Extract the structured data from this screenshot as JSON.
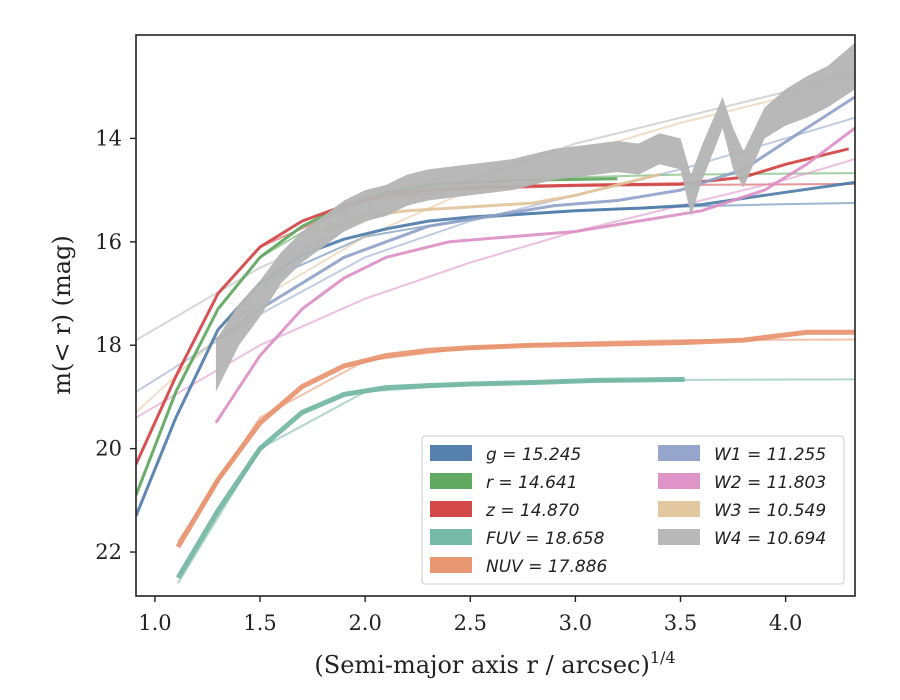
{
  "chart_data": {
    "type": "line",
    "xlabel": "(Semi-major axis r / arcsec)",
    "xlabel_exponent": "1/4",
    "ylabel": "m(< r) (mag)",
    "xlim": [
      0.91,
      4.33
    ],
    "ylim": [
      22.85,
      12.0
    ],
    "y_inverted": true,
    "grid": false,
    "legend_placement": "lower-right",
    "x_ticks": [
      "1.0",
      "1.5",
      "2.0",
      "2.5",
      "3.0",
      "3.5",
      "4.0"
    ],
    "y_ticks": [
      "14",
      "16",
      "18",
      "20",
      "22"
    ],
    "series": [
      {
        "name": "g",
        "legend": "g = 15.245",
        "color": "#4c7aa8",
        "x": [
          0.91,
          1.1,
          1.3,
          1.5,
          1.7,
          1.9,
          2.1,
          2.3,
          2.5,
          2.8,
          3.0,
          3.3,
          3.6,
          3.9,
          4.33
        ],
        "y": [
          21.3,
          19.4,
          17.7,
          16.8,
          16.25,
          15.95,
          15.75,
          15.6,
          15.52,
          15.45,
          15.4,
          15.35,
          15.28,
          15.1,
          14.85
        ],
        "fit_x": [
          1.5,
          2.0,
          2.5,
          3.0,
          3.5,
          4.0,
          4.33
        ],
        "fit_y": [
          16.8,
          15.9,
          15.55,
          15.4,
          15.32,
          15.27,
          15.25
        ]
      },
      {
        "name": "r",
        "legend": "r = 14.641",
        "color": "#5aa55a",
        "x": [
          0.91,
          1.1,
          1.3,
          1.5,
          1.7,
          1.9,
          2.1,
          2.3,
          2.5,
          2.7,
          2.9,
          3.2
        ],
        "y": [
          20.9,
          18.9,
          17.3,
          16.3,
          15.7,
          15.3,
          15.05,
          14.9,
          14.85,
          14.82,
          14.8,
          14.78
        ],
        "fit_x": [
          1.5,
          2.0,
          2.5,
          3.0,
          3.5,
          4.0,
          4.33
        ],
        "fit_y": [
          16.3,
          15.1,
          14.85,
          14.75,
          14.7,
          14.68,
          14.67
        ]
      },
      {
        "name": "z",
        "legend": "z = 14.870",
        "color": "#d24040",
        "x": [
          0.91,
          1.1,
          1.3,
          1.5,
          1.7,
          1.9,
          2.1,
          2.3,
          2.5,
          2.8,
          3.1,
          3.5,
          3.8,
          4.0,
          4.3
        ],
        "y": [
          20.3,
          18.6,
          17.0,
          16.1,
          15.6,
          15.3,
          15.1,
          15.0,
          14.95,
          14.92,
          14.9,
          14.88,
          14.75,
          14.5,
          14.2
        ],
        "fit_x": [
          1.5,
          2.0,
          2.5,
          3.0,
          3.5,
          4.0,
          4.33
        ],
        "fit_y": [
          16.1,
          15.2,
          14.98,
          14.92,
          14.9,
          14.89,
          14.88
        ]
      },
      {
        "name": "FUV",
        "legend": "FUV = 18.658",
        "color": "#6fb5a0",
        "x": [
          1.11,
          1.3,
          1.5,
          1.7,
          1.9,
          2.1,
          2.3,
          2.5,
          2.8,
          3.1,
          3.52
        ],
        "y": [
          22.5,
          21.2,
          20.0,
          19.3,
          18.95,
          18.82,
          18.78,
          18.75,
          18.72,
          18.68,
          18.66
        ],
        "fit_x": [
          1.11,
          1.5,
          2.0,
          2.5,
          3.0,
          3.5,
          4.33
        ],
        "fit_y": [
          22.6,
          20.0,
          18.9,
          18.75,
          18.7,
          18.67,
          18.66
        ]
      },
      {
        "name": "NUV",
        "legend": "NUV = 17.886",
        "color": "#e8906a",
        "x": [
          1.11,
          1.3,
          1.5,
          1.7,
          1.9,
          2.1,
          2.3,
          2.5,
          2.8,
          3.1,
          3.5,
          3.8,
          4.1,
          4.33
        ],
        "y": [
          21.9,
          20.6,
          19.5,
          18.8,
          18.4,
          18.2,
          18.1,
          18.05,
          18.0,
          17.98,
          17.95,
          17.9,
          17.75,
          17.75
        ],
        "fit_x": [
          1.11,
          1.5,
          2.0,
          2.5,
          3.0,
          3.5,
          4.33
        ],
        "fit_y": [
          21.8,
          19.4,
          18.3,
          18.05,
          17.95,
          17.9,
          17.89
        ]
      },
      {
        "name": "W1",
        "legend": "W1 = 11.255",
        "color": "#8fa0c8",
        "x": [
          1.29,
          1.5,
          1.7,
          1.9,
          2.1,
          2.3,
          2.6,
          2.9,
          3.2,
          3.5,
          3.8,
          4.1,
          4.33
        ],
        "y": [
          17.9,
          17.3,
          16.8,
          16.3,
          16.0,
          15.7,
          15.5,
          15.3,
          15.2,
          15.0,
          14.6,
          13.8,
          13.2
        ],
        "fit_x": [
          0.91,
          1.5,
          2.0,
          2.5,
          3.0,
          3.5,
          4.0,
          4.33
        ],
        "fit_y": [
          18.9,
          17.4,
          16.3,
          15.6,
          15.1,
          14.6,
          14.0,
          13.6
        ]
      },
      {
        "name": "W2",
        "legend": "W2 = 11.803",
        "color": "#dc8ec4",
        "x": [
          1.29,
          1.5,
          1.7,
          1.9,
          2.1,
          2.4,
          2.7,
          3.0,
          3.3,
          3.6,
          3.9,
          4.1,
          4.33
        ],
        "y": [
          19.5,
          18.2,
          17.3,
          16.7,
          16.3,
          16.0,
          15.9,
          15.8,
          15.6,
          15.4,
          15.0,
          14.5,
          13.8
        ],
        "fit_x": [
          0.91,
          1.5,
          2.0,
          2.5,
          3.0,
          3.5,
          4.0,
          4.33
        ],
        "fit_y": [
          19.4,
          18.0,
          17.1,
          16.4,
          15.8,
          15.3,
          14.8,
          14.4
        ]
      },
      {
        "name": "W3",
        "legend": "W3 = 10.549",
        "color": "#e0c49a",
        "x": [
          1.8,
          2.0,
          2.2,
          2.4,
          2.6,
          2.8,
          3.0,
          3.2,
          3.4
        ],
        "y": [
          15.8,
          15.5,
          15.4,
          15.35,
          15.3,
          15.25,
          15.1,
          14.9,
          14.7
        ],
        "fit_x": [
          0.91,
          1.5,
          2.0,
          2.5,
          3.0,
          3.5,
          4.0,
          4.33
        ],
        "fit_y": [
          19.3,
          17.1,
          15.9,
          15.0,
          14.3,
          13.7,
          13.2,
          12.85
        ]
      },
      {
        "name": "W4",
        "legend": "W4 = 10.694",
        "color": "#b4b4b4",
        "x": [
          1.29,
          1.4,
          1.5,
          1.6,
          1.7,
          1.8,
          1.9,
          2.0,
          2.1,
          2.2,
          2.3,
          2.4,
          2.5,
          2.6,
          2.7,
          2.8,
          2.9,
          3.0,
          3.1,
          3.2,
          3.3,
          3.4,
          3.5,
          3.55,
          3.6,
          3.7,
          3.75,
          3.8,
          3.9,
          4.0,
          4.1,
          4.2,
          4.33
        ],
        "y": [
          18.4,
          17.6,
          17.1,
          16.5,
          16.1,
          15.8,
          15.5,
          15.3,
          15.2,
          15.0,
          14.9,
          14.85,
          14.8,
          14.75,
          14.7,
          14.6,
          14.5,
          14.45,
          14.4,
          14.35,
          14.4,
          14.2,
          14.3,
          15.1,
          14.5,
          13.5,
          14.2,
          14.6,
          13.7,
          13.4,
          13.2,
          13.0,
          12.6
        ],
        "band_width": [
          0.5,
          0.4,
          0.35,
          0.3,
          0.3,
          0.3,
          0.3,
          0.3,
          0.3,
          0.3,
          0.3,
          0.3,
          0.3,
          0.3,
          0.3,
          0.3,
          0.3,
          0.3,
          0.3,
          0.3,
          0.3,
          0.3,
          0.3,
          0.4,
          0.35,
          0.3,
          0.4,
          0.35,
          0.3,
          0.35,
          0.4,
          0.4,
          0.45
        ],
        "fit_x": [
          0.91,
          1.5,
          2.0,
          2.5,
          3.0,
          3.5,
          4.0,
          4.33
        ],
        "fit_y": [
          17.9,
          16.5,
          15.6,
          14.8,
          14.1,
          13.6,
          13.1,
          12.7
        ]
      }
    ],
    "legend_layout": {
      "col1": [
        "g",
        "r",
        "z",
        "FUV",
        "NUV"
      ],
      "col2": [
        "W1",
        "W2",
        "W3",
        "W4"
      ]
    }
  }
}
